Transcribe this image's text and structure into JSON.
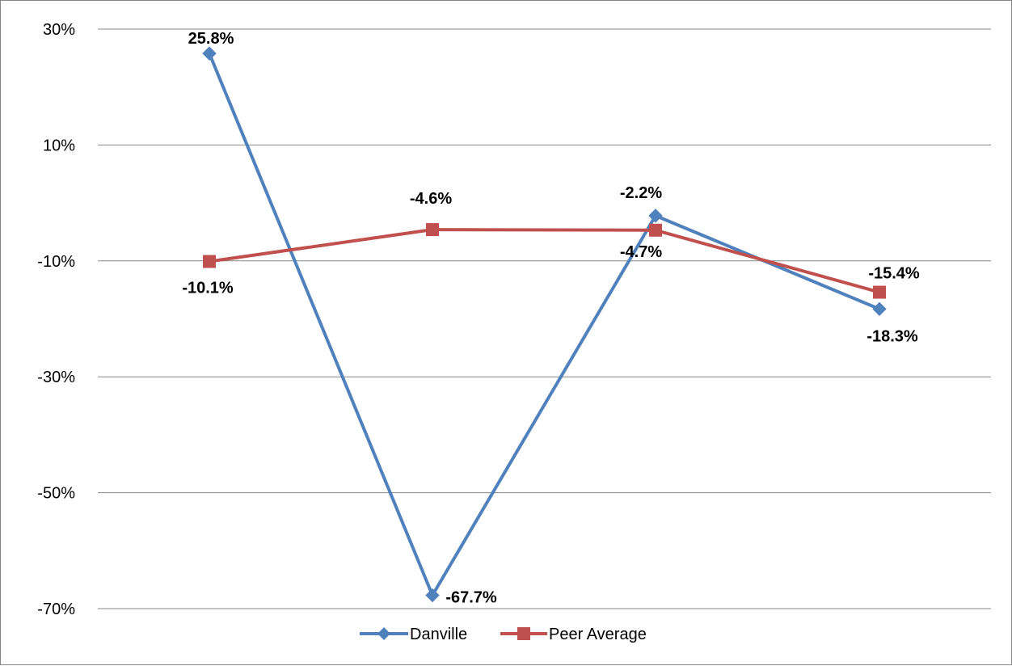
{
  "chart_data": {
    "type": "line",
    "categories": [
      "",
      "",
      "",
      ""
    ],
    "y_ticks": [
      "30%",
      "10%",
      "-10%",
      "-30%",
      "-50%",
      "-70%"
    ],
    "ylim": [
      -70,
      30
    ],
    "y_tick_values": [
      30,
      10,
      -10,
      -30,
      -50,
      -70
    ],
    "grid": true,
    "legend_placement": "bottom",
    "series": [
      {
        "name": "Danville",
        "values": [
          25.8,
          -67.7,
          -2.2,
          -18.3
        ],
        "labels": [
          "25.8%",
          "-67.7%",
          "-2.2%",
          "-18.3%"
        ],
        "color": "#4F81BD",
        "marker": "diamond"
      },
      {
        "name": "Peer Average",
        "values": [
          -10.1,
          -4.6,
          -4.7,
          -15.4
        ],
        "labels": [
          "-10.1%",
          "-4.6%",
          "-4.7%",
          "-15.4%"
        ],
        "color": "#C0504D",
        "marker": "square"
      }
    ]
  }
}
